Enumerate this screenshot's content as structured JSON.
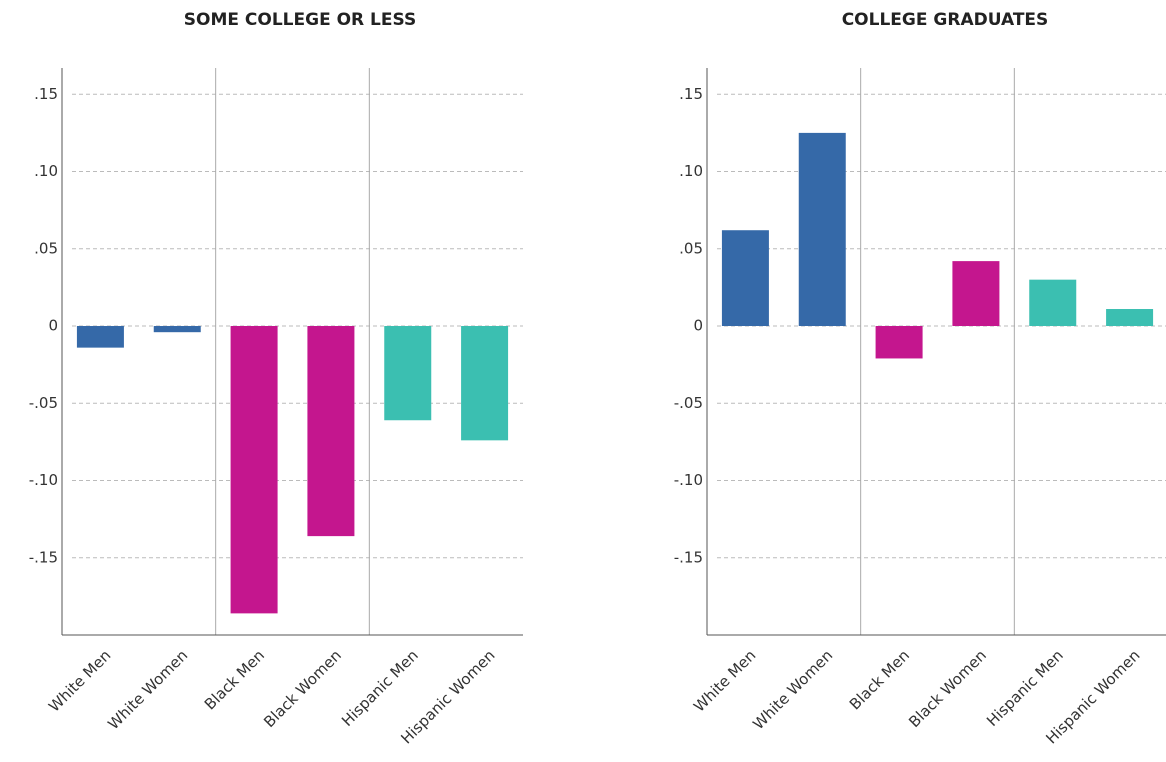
{
  "chart_data": [
    {
      "type": "bar",
      "title": "SOME COLLEGE OR LESS",
      "categories": [
        "White Men",
        "White Women",
        "Black Men",
        "Black Women",
        "Hispanic Men",
        "Hispanic Women"
      ],
      "values": [
        -0.014,
        -0.004,
        -0.186,
        -0.136,
        -0.061,
        -0.074
      ],
      "colors": [
        "#3569a8",
        "#3569a8",
        "#c4168e",
        "#c4168e",
        "#3bbfb1",
        "#3bbfb1"
      ],
      "ylim": [
        -0.2,
        0.167
      ],
      "yticks": [
        {
          "value": -0.15,
          "label": "-.15"
        },
        {
          "value": -0.1,
          "label": "-.10"
        },
        {
          "value": -0.05,
          "label": "-.05"
        },
        0,
        {
          "value": 0.05,
          "label": ".05"
        },
        {
          "value": 0.1,
          "label": ".10"
        },
        {
          "value": 0.15,
          "label": ".15"
        }
      ],
      "grid": true
    },
    {
      "type": "bar",
      "title": "COLLEGE GRADUATES",
      "categories": [
        "White Men",
        "White Women",
        "Black Men",
        "Black Women",
        "Hispanic Men",
        "Hispanic Women"
      ],
      "values": [
        0.062,
        0.125,
        -0.021,
        0.042,
        0.03,
        0.011
      ],
      "colors": [
        "#3569a8",
        "#3569a8",
        "#c4168e",
        "#c4168e",
        "#3bbfb1",
        "#3bbfb1"
      ],
      "ylim": [
        -0.2,
        0.167
      ],
      "yticks": [
        {
          "value": -0.15,
          "label": "-.15"
        },
        {
          "value": -0.1,
          "label": "-.10"
        },
        {
          "value": -0.05,
          "label": "-.05"
        },
        0,
        {
          "value": 0.05,
          "label": ".05"
        },
        {
          "value": 0.1,
          "label": ".10"
        },
        {
          "value": 0.15,
          "label": ".15"
        }
      ],
      "grid": true
    }
  ]
}
